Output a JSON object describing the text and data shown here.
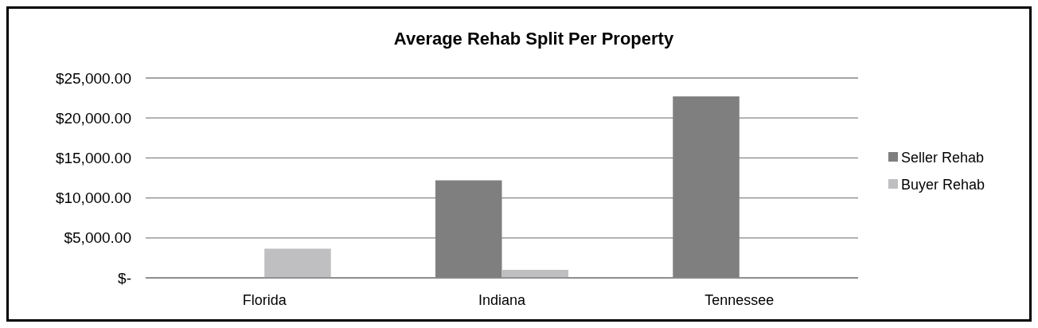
{
  "chart_data": {
    "type": "bar",
    "title": "Average Rehab Split Per Property",
    "categories": [
      "Florida",
      "Indiana",
      "Tennessee"
    ],
    "series": [
      {
        "name": "Seller Rehab",
        "color": "#7f7f80",
        "values": [
          0,
          12200,
          22700
        ]
      },
      {
        "name": "Buyer Rehab",
        "color": "#bfbfc1",
        "values": [
          3650,
          1000,
          0
        ]
      }
    ],
    "ylim": [
      0,
      25000
    ],
    "yticks": [
      {
        "value": 0,
        "label": "$-"
      },
      {
        "value": 5000,
        "label": "$5,000.00"
      },
      {
        "value": 10000,
        "label": "$10,000.00"
      },
      {
        "value": 15000,
        "label": "$15,000.00"
      },
      {
        "value": 20000,
        "label": "$20,000.00"
      },
      {
        "value": 25000,
        "label": "$25,000.00"
      }
    ],
    "grid": "y",
    "legend": "right"
  }
}
